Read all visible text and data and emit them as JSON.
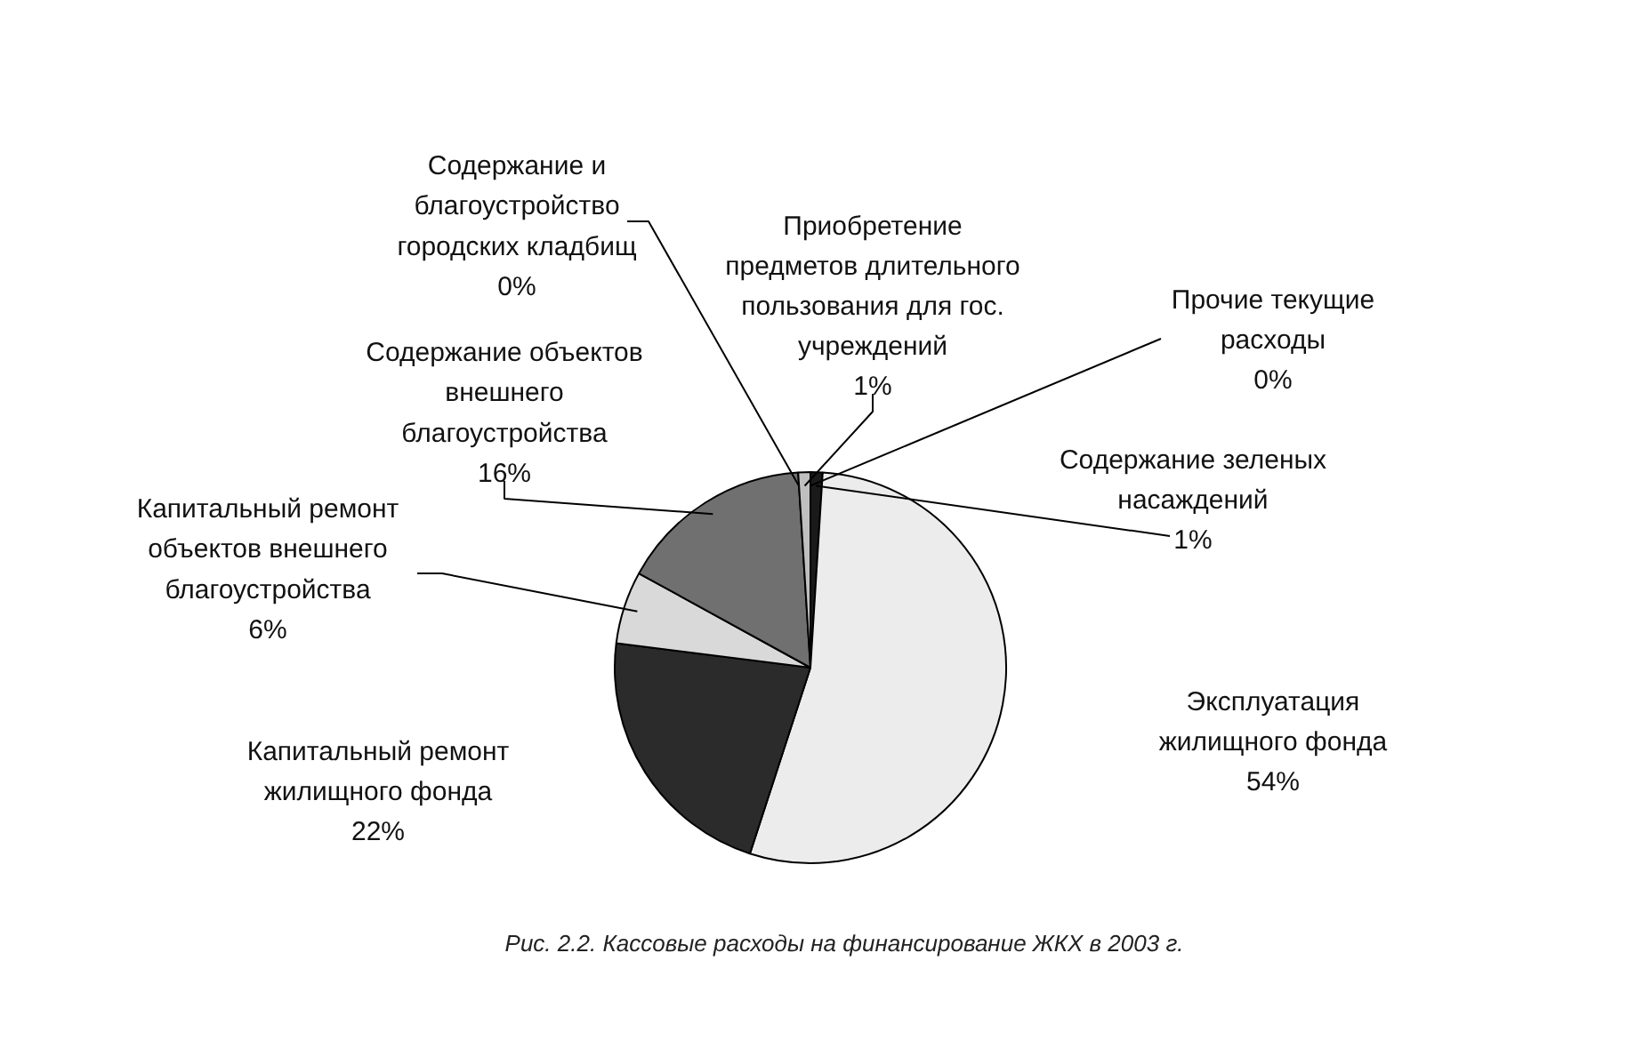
{
  "chart_data": {
    "type": "pie",
    "categories": [
      "Прочие текущие расходы",
      "Содержание зеленых насаждений",
      "Эксплуатация жилищного фонда",
      "Капитальный ремонт жилищного фонда",
      "Капитальный ремонт объектов внешнего благоустройства",
      "Содержание объектов внешнего благоустройства",
      "Содержание и благоустройство городских кладбищ",
      "Приобретение предметов длительного пользования для гос. учреждений"
    ],
    "values": [
      0,
      1,
      54,
      22,
      6,
      16,
      0,
      1
    ],
    "value_labels": [
      "0%",
      "1%",
      "54%",
      "22%",
      "6%",
      "16%",
      "0%",
      "1%"
    ],
    "colors": [
      "#ffffff",
      "#1a1a1a",
      "#ececec",
      "#2b2b2b",
      "#d9d9d9",
      "#707070",
      "#a0a0a0",
      "#bfbfbf"
    ],
    "annotations": [
      "Рис. 2.2. Кассовые расходы на финансирование ЖКХ в 2003 г."
    ]
  }
}
